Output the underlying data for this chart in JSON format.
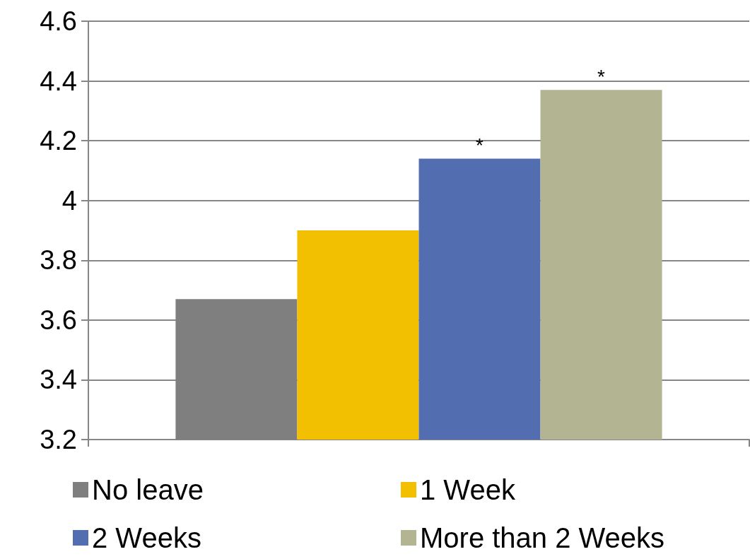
{
  "chart_data": {
    "type": "bar",
    "categories": [
      null
    ],
    "series": [
      {
        "name": "No leave",
        "color": "#7f7f7f",
        "values": [
          3.67
        ],
        "value_labels": [
          null
        ]
      },
      {
        "name": "1 Week",
        "color": "#f2c000",
        "values": [
          3.9
        ],
        "value_labels": [
          null
        ]
      },
      {
        "name": "2 Weeks",
        "color": "#526db0",
        "values": [
          4.14
        ],
        "value_labels": [
          "*"
        ]
      },
      {
        "name": "More than 2 Weeks",
        "color": "#b3b491",
        "values": [
          4.37
        ],
        "value_labels": [
          "*"
        ]
      }
    ],
    "ylim": [
      3.2,
      4.6
    ],
    "yticks": [
      3.2,
      3.4,
      3.6,
      3.8,
      4,
      4.2,
      4.4,
      4.6
    ],
    "grid": "y",
    "legend": "bottom"
  }
}
